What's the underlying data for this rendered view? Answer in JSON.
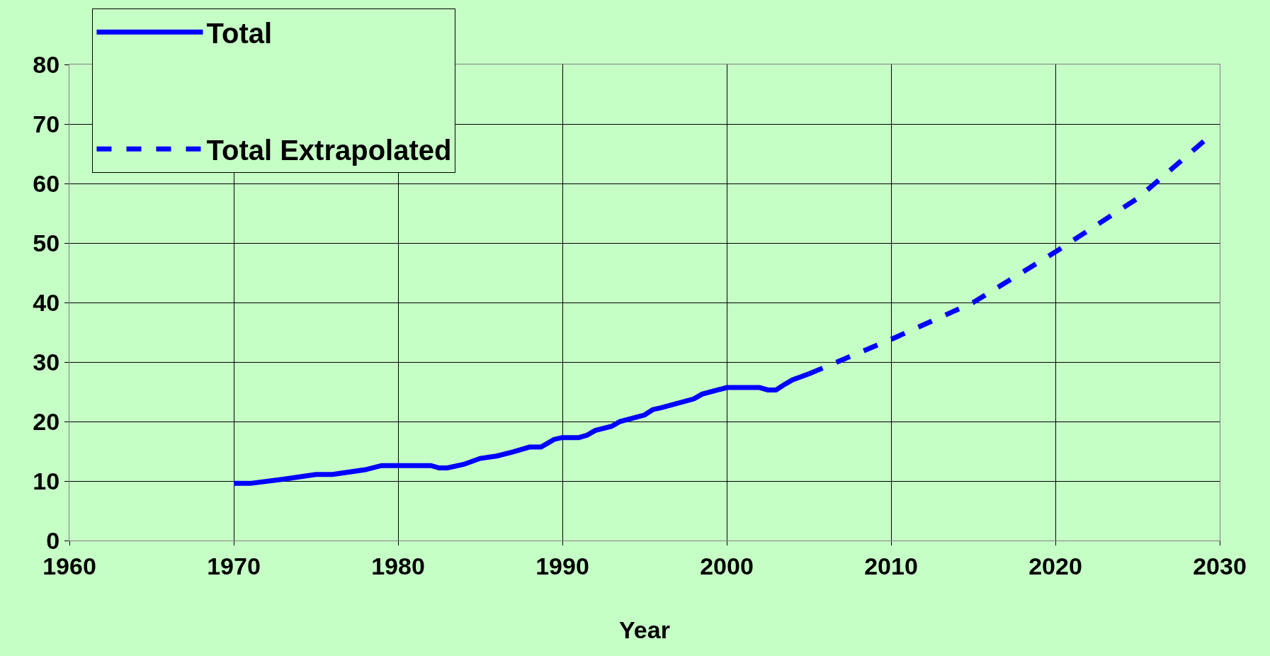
{
  "chart_data": {
    "type": "line",
    "xlabel": "Year",
    "xlim": [
      1960,
      2030
    ],
    "xticks": [
      1960,
      1970,
      1980,
      1990,
      2000,
      2010,
      2020,
      2030
    ],
    "ylim": [
      0,
      80
    ],
    "yticks": [
      0,
      10,
      20,
      30,
      40,
      50,
      60,
      70,
      80
    ],
    "grid": true,
    "legend": "top left",
    "series": [
      {
        "name": "Total",
        "color": "#0000ff",
        "line_style": "solid",
        "x": [
          1970,
          1971,
          1973,
          1975,
          1976,
          1978,
          1979,
          1980,
          1982,
          1982.5,
          1983,
          1984,
          1985,
          1986,
          1987,
          1988,
          1988.7,
          1989,
          1989.5,
          1990,
          1991,
          1991.5,
          1992,
          1993,
          1993.5,
          1995,
          1995.5,
          1996,
          1998,
          1998.5,
          2000,
          2002,
          2002.5,
          2003,
          2003.5,
          2004,
          2005
        ],
        "values": [
          9.6,
          9.6,
          10.3,
          11.1,
          11.1,
          11.9,
          12.6,
          12.6,
          12.6,
          12.2,
          12.2,
          12.8,
          13.8,
          14.2,
          14.9,
          15.7,
          15.7,
          16.2,
          17.0,
          17.3,
          17.3,
          17.7,
          18.5,
          19.2,
          20.0,
          21.1,
          22.0,
          22.3,
          23.8,
          24.6,
          25.7,
          25.7,
          25.3,
          25.3,
          26.2,
          27.0,
          28.0
        ]
      },
      {
        "name": "Total Extrapolated",
        "color": "#0000ff",
        "line_style": "dashed",
        "x": [
          2005,
          2008,
          2010,
          2015,
          2020,
          2025,
          2029.2
        ],
        "values": [
          28.0,
          31.5,
          33.8,
          40.0,
          48.5,
          57.5,
          67.5
        ]
      }
    ]
  }
}
